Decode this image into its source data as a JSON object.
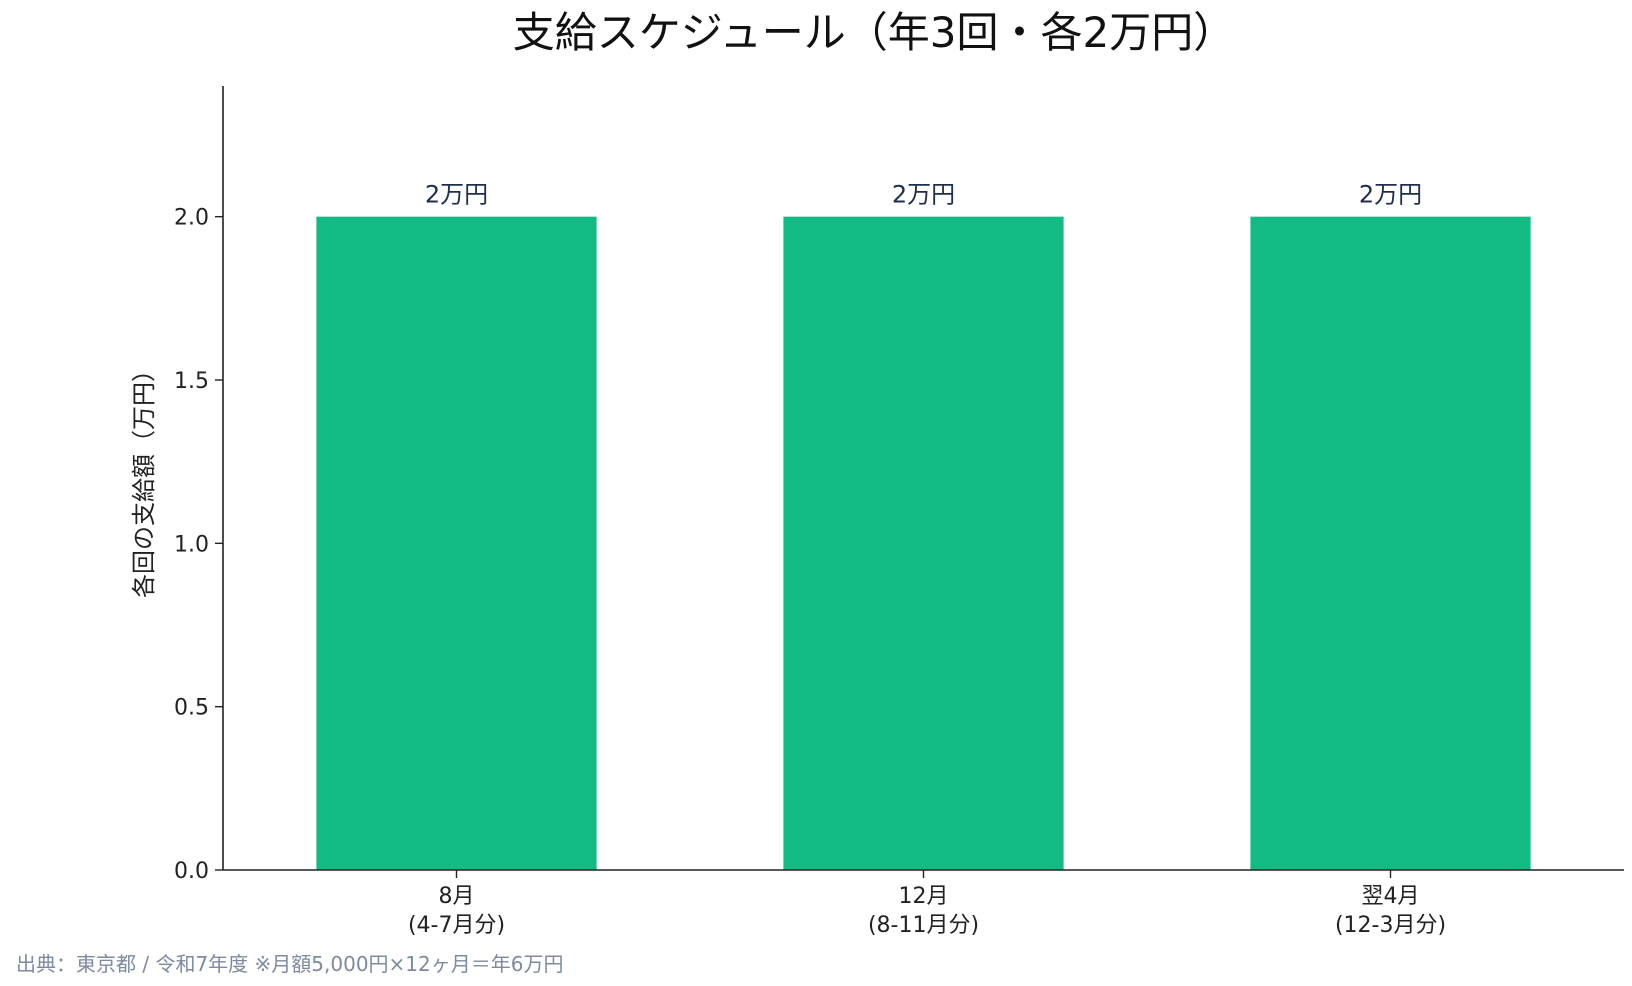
{
  "chart_data": {
    "type": "bar",
    "title": "支給スケジュール（年3回・各2万円）",
    "ylabel": "各回の支給額（万円）",
    "xlabel": "",
    "categories": [
      [
        "8月",
        "(4-7月分)"
      ],
      [
        "12月",
        "(8-11月分)"
      ],
      [
        "翌4月",
        "(12-3月分)"
      ]
    ],
    "values": [
      2.0,
      2.0,
      2.0
    ],
    "data_labels": [
      "2万円",
      "2万円",
      "2万円"
    ],
    "ylim": [
      0,
      2.4
    ],
    "yticks": [
      0.0,
      0.5,
      1.0,
      1.5,
      2.0
    ],
    "ytick_labels": [
      "0.0",
      "0.5",
      "1.0",
      "1.5",
      "2.0"
    ],
    "bar_color": "#13bb84",
    "grid": false
  },
  "source_note": "出典：東京都 / 令和7年度 ※月額5,000円×12ヶ月＝年6万円"
}
